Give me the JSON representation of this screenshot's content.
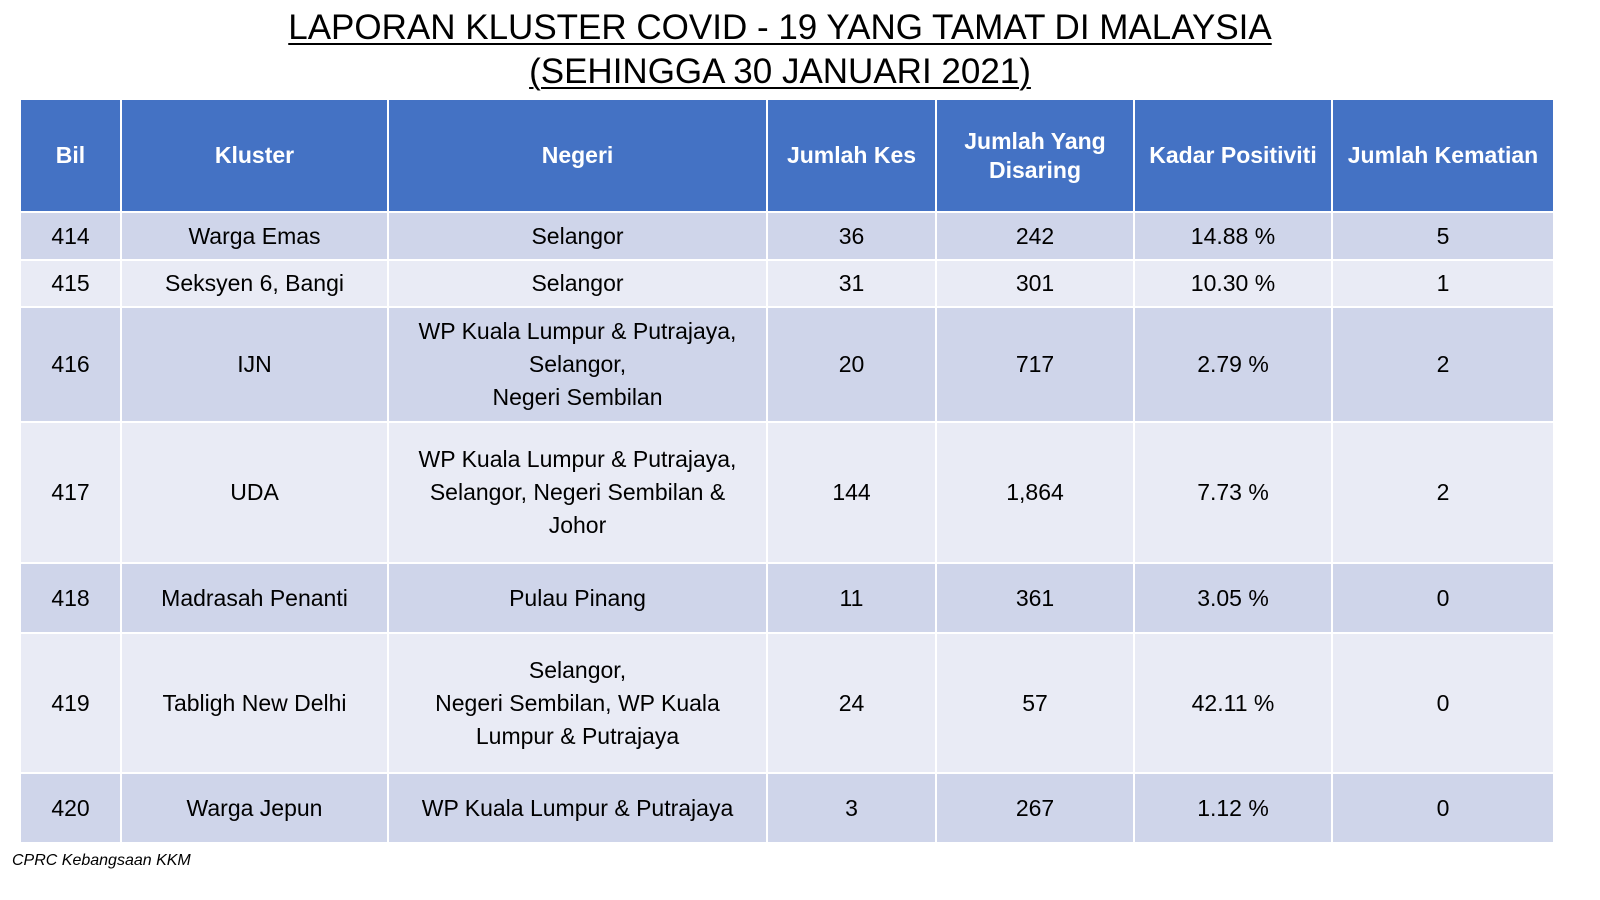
{
  "title": {
    "line1": "LAPORAN KLUSTER COVID - 19 YANG TAMAT DI MALAYSIA",
    "line2": "(SEHINGGA 30 JANUARI 2021)"
  },
  "table": {
    "headers": {
      "bil": "Bil",
      "kluster": "Kluster",
      "negeri": "Negeri",
      "jumlah_kes": "Jumlah Kes",
      "jumlah_disaring": "Jumlah Yang Disaring",
      "kadar_positiviti": "Kadar Positiviti",
      "jumlah_kematian": "Jumlah Kematian"
    },
    "rows": [
      {
        "bil": "414",
        "kluster": "Warga Emas",
        "negeri": "Selangor",
        "jumlah_kes": "36",
        "jumlah_disaring": "242",
        "kadar_positiviti": "14.88 %",
        "jumlah_kematian": "5"
      },
      {
        "bil": "415",
        "kluster": "Seksyen 6, Bangi",
        "negeri": "Selangor",
        "jumlah_kes": "31",
        "jumlah_disaring": "301",
        "kadar_positiviti": "10.30 %",
        "jumlah_kematian": "1"
      },
      {
        "bil": "416",
        "kluster": "IJN",
        "negeri": "WP Kuala Lumpur & Putrajaya,\nSelangor,\nNegeri Sembilan",
        "jumlah_kes": "20",
        "jumlah_disaring": "717",
        "kadar_positiviti": "2.79 %",
        "jumlah_kematian": "2"
      },
      {
        "bil": "417",
        "kluster": "UDA",
        "negeri": "WP Kuala Lumpur & Putrajaya,\nSelangor, Negeri Sembilan &\nJohor",
        "jumlah_kes": "144",
        "jumlah_disaring": "1,864",
        "kadar_positiviti": "7.73 %",
        "jumlah_kematian": "2"
      },
      {
        "bil": "418",
        "kluster": "Madrasah Penanti",
        "negeri": "Pulau Pinang",
        "jumlah_kes": "11",
        "jumlah_disaring": "361",
        "kadar_positiviti": "3.05 %",
        "jumlah_kematian": "0"
      },
      {
        "bil": "419",
        "kluster": "Tabligh New Delhi",
        "negeri": "Selangor,\nNegeri Sembilan, WP Kuala\nLumpur & Putrajaya",
        "jumlah_kes": "24",
        "jumlah_disaring": "57",
        "kadar_positiviti": "42.11 %",
        "jumlah_kematian": "0"
      },
      {
        "bil": "420",
        "kluster": "Warga Jepun",
        "negeri": "WP Kuala Lumpur & Putrajaya",
        "jumlah_kes": "3",
        "jumlah_disaring": "267",
        "kadar_positiviti": "1.12 %",
        "jumlah_kematian": "0"
      }
    ]
  },
  "footnote": "CPRC Kebangsaan KKM",
  "colors": {
    "header_bg": "#4472c4",
    "header_text": "#ffffff",
    "row_odd_bg": "#cfd5ea",
    "row_even_bg": "#e9ebf5"
  }
}
